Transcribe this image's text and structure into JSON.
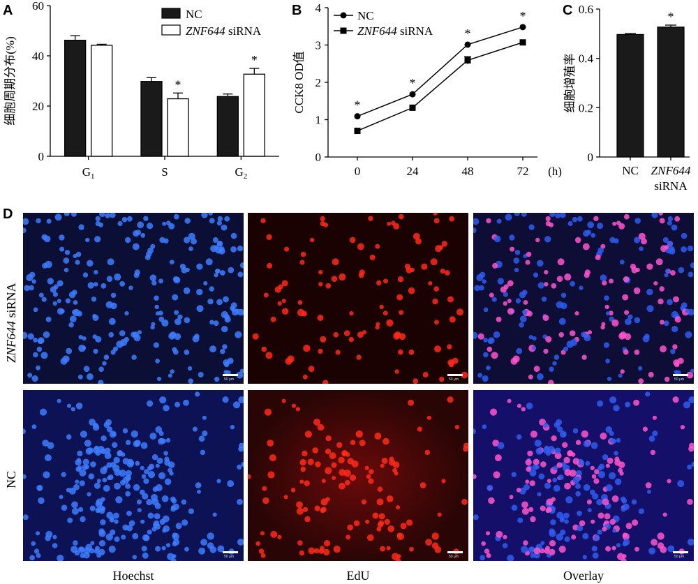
{
  "panel_letters": {
    "a": "A",
    "b": "B",
    "c": "C",
    "d": "D"
  },
  "chart_data": [
    {
      "type": "bar",
      "panel": "A",
      "ylabel": "细胞周期分布(%)",
      "ylim": [
        0,
        60
      ],
      "yticks": [
        "0",
        "20",
        "40",
        "60"
      ],
      "categories": [
        "G1",
        "S",
        "G2"
      ],
      "category_labels": [
        {
          "main": "G",
          "sub": "1"
        },
        {
          "main": "S",
          "sub": ""
        },
        {
          "main": "G",
          "sub": "2"
        }
      ],
      "series": [
        {
          "name": "NC",
          "color": "#1a1a1a",
          "values": [
            46.2,
            29.8,
            23.8
          ],
          "errors": [
            1.8,
            1.5,
            1.0
          ]
        },
        {
          "name": "ZNF644 siRNA",
          "color": "#ffffff",
          "values": [
            44.2,
            22.9,
            32.7
          ],
          "errors": [
            0.4,
            2.3,
            2.3
          ]
        }
      ],
      "significance": [
        "",
        "*",
        "*"
      ],
      "legend": {
        "position": "top-right",
        "entries": [
          {
            "italic": "",
            "text": "NC"
          },
          {
            "italic": "ZNF644",
            "text": " siRNA"
          }
        ]
      }
    },
    {
      "type": "line",
      "panel": "B",
      "ylabel": "CCK8 OD值",
      "x": [
        0,
        24,
        48,
        72
      ],
      "xticks": [
        "0",
        "24",
        "48",
        "72"
      ],
      "x_unit": "(h)",
      "ylim": [
        0,
        4
      ],
      "yticks": [
        "0",
        "1",
        "2",
        "3",
        "4"
      ],
      "series": [
        {
          "name": "NC",
          "marker": "circle",
          "values": [
            1.09,
            1.68,
            3.01,
            3.48
          ],
          "errors": [
            0.02,
            0.03,
            0.04,
            0.03
          ]
        },
        {
          "name": "ZNF644 siRNA",
          "marker": "square",
          "values": [
            0.7,
            1.32,
            2.59,
            3.07
          ],
          "errors": [
            0.02,
            0.03,
            0.1,
            0.03
          ]
        }
      ],
      "significance": [
        "*",
        "*",
        "*",
        "*"
      ],
      "legend": {
        "position": "top-left",
        "entries": [
          {
            "italic": "",
            "text": "NC"
          },
          {
            "italic": "ZNF644",
            "text": " siRNA"
          }
        ]
      }
    },
    {
      "type": "bar",
      "panel": "C",
      "ylabel": "细胞增殖率",
      "ylim": [
        0,
        0.6
      ],
      "yticks": [
        "0",
        "0.2",
        "0.4",
        "0.6"
      ],
      "categories": [
        "NC",
        "ZNF644 siRNA"
      ],
      "category_labels": [
        {
          "line1_italic": "",
          "line1": "NC",
          "line2": ""
        },
        {
          "line1_italic": "ZNF644",
          "line1": "",
          "line2": "siRNA"
        }
      ],
      "values": [
        0.497,
        0.527
      ],
      "errors": [
        0.004,
        0.008
      ],
      "color": "#1a1a1a",
      "significance": [
        "",
        "*"
      ]
    }
  ],
  "microscopy": {
    "row_labels": [
      {
        "italic": "ZNF644",
        "text": " siRNA"
      },
      {
        "italic": "",
        "text": "NC"
      }
    ],
    "column_labels": [
      "Hoechst",
      "EdU",
      "Overlay"
    ],
    "scale_bar_text": "50 μm"
  }
}
